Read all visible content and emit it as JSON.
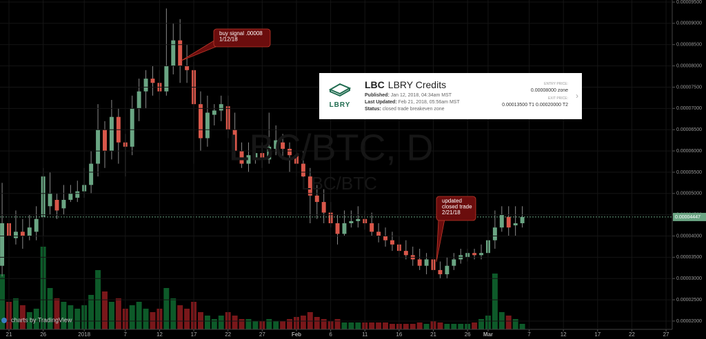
{
  "chart_data": {
    "type": "candlestick",
    "watermark": "LBC/BTC, D",
    "watermark_sub": "LBC/BTC",
    "credit": "charts by TradingView",
    "up_color": "#6aa583",
    "down_color": "#d9574a",
    "volume_up_color": "#0f6a30",
    "volume_down_color": "#8e1b1f",
    "grid": true,
    "xlim": [
      -1.31,
      96.9
    ],
    "xticks": [
      {
        "value": 0,
        "label": "21"
      },
      {
        "value": 5,
        "label": "26"
      },
      {
        "value": 11,
        "label": "2018"
      },
      {
        "value": 17,
        "label": "7"
      },
      {
        "value": 22,
        "label": "12"
      },
      {
        "value": 27,
        "label": "17"
      },
      {
        "value": 32,
        "label": "22"
      },
      {
        "value": 37,
        "label": "27"
      },
      {
        "value": 42,
        "label": "Feb"
      },
      {
        "value": 47,
        "label": "6"
      },
      {
        "value": 52,
        "label": "11"
      },
      {
        "value": 57,
        "label": "16"
      },
      {
        "value": 62,
        "label": "21"
      },
      {
        "value": 67,
        "label": "26"
      },
      {
        "value": 70,
        "label": "Mar"
      },
      {
        "value": 76,
        "label": "7"
      },
      {
        "value": 81,
        "label": "12"
      },
      {
        "value": 86,
        "label": "17"
      },
      {
        "value": 91,
        "label": "22"
      },
      {
        "value": 96,
        "label": "27"
      }
    ],
    "ylim": [
      1.805e-05,
      9.549e-05
    ],
    "yticks": [
      {
        "value": 9.5e-05,
        "label": "0.00009500"
      },
      {
        "value": 9e-05,
        "label": "0.00009000"
      },
      {
        "value": 8.5e-05,
        "label": "0.00008500"
      },
      {
        "value": 8e-05,
        "label": "0.00008000"
      },
      {
        "value": 7.5e-05,
        "label": "0.00007500"
      },
      {
        "value": 7e-05,
        "label": "0.00007000"
      },
      {
        "value": 6.5e-05,
        "label": "0.00006500"
      },
      {
        "value": 6e-05,
        "label": "0.00006000"
      },
      {
        "value": 5.5e-05,
        "label": "0.00005500"
      },
      {
        "value": 5e-05,
        "label": "0.00005000"
      },
      {
        "value": 4.5e-05,
        "label": "0.00004500"
      },
      {
        "value": 4e-05,
        "label": "0.00004000"
      },
      {
        "value": 3.5e-05,
        "label": "0.00003500"
      },
      {
        "value": 3e-05,
        "label": "0.00003000"
      },
      {
        "value": 2.5e-05,
        "label": "0.00002500"
      },
      {
        "value": 2e-05,
        "label": "0.00002000"
      }
    ],
    "last_price": {
      "value": 4.447e-05,
      "label": "0.00004447"
    },
    "vlim": [
      0,
      200
    ],
    "x": [
      -1,
      0,
      1,
      2,
      3,
      4,
      5,
      6,
      7,
      8,
      9,
      10,
      11,
      12,
      13,
      14,
      15,
      16,
      17,
      18,
      19,
      20,
      21,
      22,
      23,
      24,
      25,
      26,
      27,
      28,
      29,
      30,
      31,
      32,
      33,
      34,
      35,
      36,
      37,
      38,
      39,
      40,
      41,
      42,
      43,
      44,
      45,
      46,
      47,
      48,
      49,
      50,
      51,
      52,
      53,
      54,
      55,
      56,
      57,
      58,
      59,
      60,
      61,
      62,
      63,
      64,
      65,
      66,
      67,
      68,
      69,
      70,
      71,
      72,
      73,
      74,
      75
    ],
    "open": [
      3.3e-05,
      4.3e-05,
      3.95e-05,
      4.1e-05,
      4e-05,
      4.1e-05,
      4.45e-05,
      4.7e-05,
      4.85e-05,
      4.65e-05,
      4.85e-05,
      4.9e-05,
      5.05e-05,
      5.2e-05,
      5.7e-05,
      6.5e-05,
      6e-05,
      6.8e-05,
      6.2e-05,
      6.1e-05,
      7e-05,
      7.4e-05,
      7.7e-05,
      7.6e-05,
      7.4e-05,
      8e-05,
      8.6e-05,
      8e-05,
      7.9e-05,
      7.1e-05,
      6.3e-05,
      6.85e-05,
      6.95e-05,
      7.05e-05,
      6.5e-05,
      6e-05,
      5.7e-05,
      5.85e-05,
      5.95e-05,
      5.8e-05,
      6.05e-05,
      6.2e-05,
      6.05e-05,
      5.9e-05,
      5.7e-05,
      5.4e-05,
      4.95e-05,
      4.8e-05,
      4.55e-05,
      4.3e-05,
      4.05e-05,
      4.3e-05,
      4.35e-05,
      4.4e-05,
      4.3e-05,
      4.1e-05,
      4e-05,
      3.9e-05,
      3.8e-05,
      3.65e-05,
      3.55e-05,
      3.45e-05,
      3.3e-05,
      3.45e-05,
      3.2e-05,
      3.1e-05,
      3.3e-05,
      3.45e-05,
      3.5e-05,
      3.6e-05,
      3.55e-05,
      3.6e-05,
      3.9e-05,
      4.2e-05,
      4.45e-05,
      4.25e-05,
      4.3e-05
    ],
    "high": [
      5.25e-05,
      4.9e-05,
      4.6e-05,
      4.4e-05,
      4.5e-05,
      4.7e-05,
      5.6e-05,
      5.5e-05,
      5e-05,
      5.2e-05,
      5.2e-05,
      5.3e-05,
      5.6e-05,
      6e-05,
      7.1e-05,
      6.7e-05,
      7.2e-05,
      7e-05,
      6.4e-05,
      7.3e-05,
      7.7e-05,
      7.9e-05,
      8e-05,
      7.9e-05,
      9.35e-05,
      9e-05,
      9.1e-05,
      8.5e-05,
      8.1e-05,
      7.4e-05,
      7.3e-05,
      7.1e-05,
      7.3e-05,
      7.3e-05,
      6.9e-05,
      6.2e-05,
      6.2e-05,
      6.3e-05,
      6.2e-05,
      6.9e-05,
      6.6e-05,
      6.4e-05,
      6.2e-05,
      6e-05,
      6e-05,
      5.6e-05,
      5.2e-05,
      5.1e-05,
      4.8e-05,
      4.5e-05,
      4.6e-05,
      4.6e-05,
      4.7e-05,
      4.6e-05,
      4.55e-05,
      4.3e-05,
      4.2e-05,
      4.1e-05,
      4e-05,
      3.9e-05,
      3.75e-05,
      3.7e-05,
      3.6e-05,
      3.6e-05,
      3.4e-05,
      3.5e-05,
      3.6e-05,
      3.7e-05,
      3.7e-05,
      3.7e-05,
      3.8e-05,
      4.1e-05,
      4.6e-05,
      4.7e-05,
      4.7e-05,
      4.7e-05,
      4.7e-05
    ],
    "low": [
      3.05e-05,
      3.7e-05,
      3.8e-05,
      3.7e-05,
      3.9e-05,
      3.9e-05,
      4e-05,
      4.5e-05,
      4.4e-05,
      4.5e-05,
      4.8e-05,
      4.8e-05,
      4.9e-05,
      5e-05,
      5.4e-05,
      5.6e-05,
      5.8e-05,
      5.7e-05,
      5.4e-05,
      5.9e-05,
      6.7e-05,
      7e-05,
      7.3e-05,
      7.2e-05,
      7.3e-05,
      7.8e-05,
      7.6e-05,
      7.6e-05,
      5.7e-05,
      6e-05,
      6.1e-05,
      6.6e-05,
      6.7e-05,
      6.3e-05,
      5.8e-05,
      5.6e-05,
      5.5e-05,
      5.7e-05,
      5.6e-05,
      5.7e-05,
      5.9e-05,
      5.8e-05,
      5.5e-05,
      5.4e-05,
      5.1e-05,
      4.3e-05,
      4.4e-05,
      4.3e-05,
      4.2e-05,
      3.8e-05,
      4e-05,
      4.2e-05,
      4.2e-05,
      4.15e-05,
      4e-05,
      3.85e-05,
      3.75e-05,
      3.65e-05,
      3.5e-05,
      3.45e-05,
      3.3e-05,
      3.2e-05,
      3.1e-05,
      3.05e-05,
      3e-05,
      3e-05,
      3.2e-05,
      3.35e-05,
      3.4e-05,
      3.45e-05,
      3.45e-05,
      3.5e-05,
      3.7e-05,
      4.1e-05,
      4e-05,
      4e-05,
      4.2e-05
    ],
    "close": [
      4.3e-05,
      4e-05,
      4.1e-05,
      4e-05,
      4.2e-05,
      4.4e-05,
      5.4e-05,
      5e-05,
      4.6e-05,
      4.85e-05,
      5e-05,
      5.05e-05,
      5.2e-05,
      5.7e-05,
      6.5e-05,
      6e-05,
      6.8e-05,
      6.2e-05,
      6.1e-05,
      7e-05,
      7.4e-05,
      7.7e-05,
      7.6e-05,
      7.4e-05,
      8e-05,
      8.6e-05,
      8e-05,
      7.9e-05,
      7.1e-05,
      6.3e-05,
      6.9e-05,
      6.95e-05,
      7.1e-05,
      6.5e-05,
      6e-05,
      5.7e-05,
      5.9e-05,
      5.95e-05,
      5.8e-05,
      6.1e-05,
      6.25e-05,
      6.05e-05,
      5.9e-05,
      5.7e-05,
      5.4e-05,
      4.95e-05,
      4.8e-05,
      4.55e-05,
      4.3e-05,
      4.05e-05,
      4.3e-05,
      4.35e-05,
      4.4e-05,
      4.3e-05,
      4.1e-05,
      4e-05,
      3.9e-05,
      3.8e-05,
      3.65e-05,
      3.55e-05,
      3.45e-05,
      3.3e-05,
      3.45e-05,
      3.2e-05,
      3.1e-05,
      3.3e-05,
      3.45e-05,
      3.55e-05,
      3.6e-05,
      3.55e-05,
      3.6e-05,
      3.9e-05,
      4.2e-05,
      4.5e-05,
      4.2e-05,
      4.3e-05,
      4.447e-05
    ],
    "volume": [
      80,
      40,
      45,
      35,
      25,
      30,
      120,
      60,
      45,
      40,
      35,
      30,
      35,
      50,
      86,
      55,
      40,
      45,
      30,
      35,
      40,
      30,
      25,
      30,
      60,
      45,
      35,
      30,
      40,
      25,
      20,
      15,
      20,
      25,
      20,
      15,
      15,
      12,
      12,
      15,
      12,
      12,
      15,
      18,
      20,
      25,
      18,
      15,
      12,
      15,
      10,
      10,
      10,
      10,
      10,
      10,
      10,
      8,
      8,
      8,
      8,
      10,
      8,
      12,
      10,
      8,
      8,
      8,
      8,
      10,
      15,
      20,
      81,
      25,
      20,
      15,
      8
    ],
    "annotations": [
      {
        "lines": [
          "buy signal .00008",
          "1/12/18"
        ]
      },
      {
        "lines": [
          "updated",
          "closed trade",
          "2/21/18"
        ]
      }
    ]
  },
  "info_card": {
    "logo": "LBRY",
    "symbol": "LBC",
    "name": "LBRY Credits",
    "published_label": "Published:",
    "published": "Jan 12, 2018, 04:34am MST",
    "updated_label": "Last Updated:",
    "updated": "Feb 21, 2018, 05:56am MST",
    "status_label": "Status:",
    "status": "closed trade breakeven zone",
    "entry_label": "ENTRY PRICE:",
    "entry": "0.00008000 zone",
    "exit_label": "EXIT PRICE:",
    "exit": "0.00013500 T1 0.00020000 T2"
  }
}
